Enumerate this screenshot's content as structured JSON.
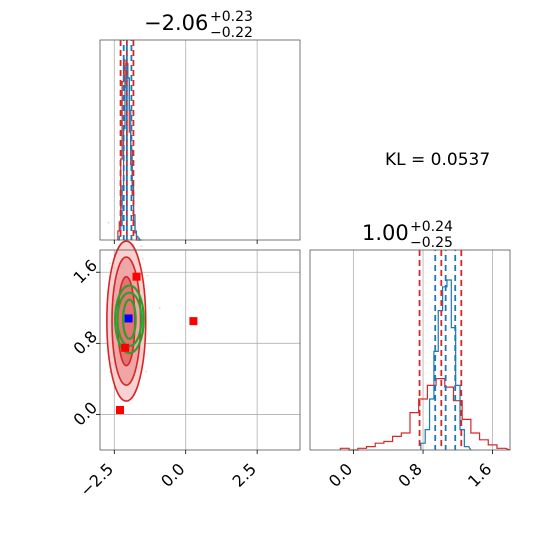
{
  "chart_data": [
    {
      "type": "histogram",
      "panel": "top-left",
      "title_value": "−2.06",
      "title_upper": "+0.23",
      "title_lower": "−0.22",
      "xlim": [
        -3.0,
        4.0
      ],
      "xticks": [
        -2.5,
        0.0,
        2.5
      ],
      "red_quantiles": [
        -2.28,
        -2.06,
        -1.83
      ],
      "blue_quantiles": [
        -2.17,
        -2.06,
        -1.9
      ],
      "red_hist": {
        "x": [
          -2.35,
          -2.3,
          -2.25,
          -2.2,
          -2.15,
          -2.1,
          -2.05,
          -2.0,
          -1.95,
          -1.9,
          -1.85,
          -1.8,
          -1.75,
          -1.7,
          -1.65,
          -1.6
        ],
        "values": [
          0.05,
          0.1,
          0.45,
          0.88,
          1.0,
          0.85,
          0.98,
          0.9,
          0.6,
          0.42,
          0.25,
          0.1,
          0.04,
          0.0,
          0.0,
          0.0
        ]
      },
      "blue_hist": {
        "x": [
          -2.35,
          -2.3,
          -2.25,
          -2.2,
          -2.15,
          -2.1,
          -2.05,
          -2.0,
          -1.95,
          -1.9,
          -1.85,
          -1.8,
          -1.75,
          -1.7,
          -1.65,
          -1.6
        ],
        "values": [
          0.0,
          0.02,
          0.08,
          0.3,
          0.62,
          0.88,
          0.95,
          0.9,
          0.72,
          0.5,
          0.3,
          0.14,
          0.05,
          0.02,
          0.01,
          0.0
        ]
      }
    },
    {
      "type": "histogram",
      "panel": "bottom-right",
      "title_value": "1.00",
      "title_upper": "+0.24",
      "title_lower": "−0.25",
      "xlim": [
        -0.5,
        1.8
      ],
      "xticks": [
        0.0,
        0.8,
        1.6
      ],
      "red_quantiles": [
        0.76,
        1.01,
        1.24
      ],
      "blue_quantiles": [
        0.94,
        1.06,
        1.17
      ],
      "red_hist": {
        "x": [
          -0.1,
          0.0,
          0.1,
          0.2,
          0.3,
          0.4,
          0.5,
          0.6,
          0.7,
          0.8,
          0.9,
          1.0,
          1.1,
          1.2,
          1.3,
          1.4,
          1.5,
          1.6,
          1.7
        ],
        "values": [
          0.01,
          0.0,
          0.01,
          0.02,
          0.04,
          0.05,
          0.08,
          0.1,
          0.22,
          0.3,
          0.38,
          0.42,
          0.37,
          0.29,
          0.18,
          0.1,
          0.06,
          0.03,
          0.01
        ]
      },
      "blue_hist": {
        "x": [
          0.8,
          0.85,
          0.9,
          0.95,
          1.0,
          1.05,
          1.1,
          1.15,
          1.2,
          1.25,
          1.3
        ],
        "values": [
          0.04,
          0.12,
          0.3,
          0.58,
          0.82,
          0.96,
          1.0,
          0.72,
          0.38,
          0.12,
          0.02
        ]
      }
    },
    {
      "type": "scatter",
      "panel": "bottom-left",
      "xlim": [
        -3.0,
        4.0
      ],
      "ylim": [
        -0.4,
        1.85
      ],
      "xticks": [
        -2.5,
        0.0,
        2.5
      ],
      "yticks": [
        0.0,
        0.8,
        1.6
      ],
      "red_contour_center": [
        -2.08,
        1.05
      ],
      "red_contour_radii": [
        [
          0.3,
          0.5
        ],
        [
          0.5,
          0.72
        ],
        [
          0.68,
          0.9
        ]
      ],
      "green_contour_center": [
        -1.97,
        1.07
      ],
      "green_contour_radii": [
        [
          0.22,
          0.22
        ],
        [
          0.42,
          0.3
        ],
        [
          0.5,
          0.38
        ]
      ],
      "red_squares": [
        [
          -1.72,
          1.55
        ],
        [
          0.27,
          1.05
        ],
        [
          -2.3,
          0.05
        ],
        [
          -2.12,
          0.75
        ]
      ],
      "blue_square": [
        -2.0,
        1.08
      ]
    }
  ],
  "annotation": {
    "kl_label": "KL = 0.0537"
  },
  "colors": {
    "red": "#d62728",
    "blue": "#1f77b4",
    "green": "#2ca02c",
    "marker_red": "#ff0000",
    "marker_blue": "#0000ff"
  }
}
